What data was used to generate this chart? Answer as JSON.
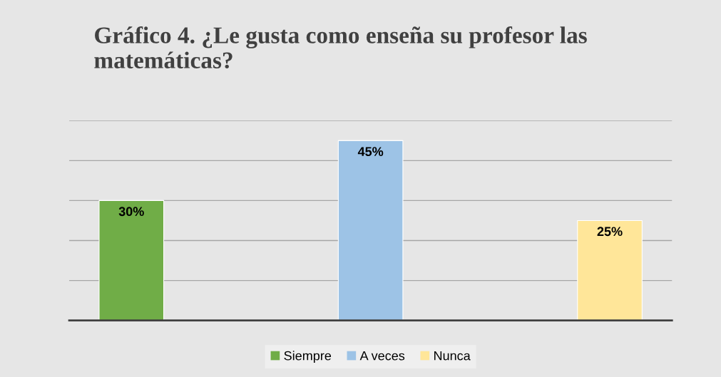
{
  "chart_data": {
    "type": "bar",
    "title": "Gráfico 4. ¿Le gusta como enseña su profesor las matemáticas?",
    "categories": [
      null,
      null,
      null
    ],
    "stacked": true,
    "series": [
      {
        "name": "Siempre",
        "color": "#70ad47",
        "values": [
          30,
          null,
          null
        ],
        "value_labels": [
          "30%",
          null,
          null
        ]
      },
      {
        "name": "A veces",
        "color": "#9dc3e6",
        "values": [
          null,
          45,
          null
        ],
        "value_labels": [
          null,
          "45%",
          null
        ]
      },
      {
        "name": "Nunca",
        "color": "#ffe699",
        "values": [
          null,
          null,
          25
        ],
        "value_labels": [
          null,
          null,
          "25%"
        ]
      }
    ],
    "ylim": [
      0,
      50
    ],
    "yticks": [
      {
        "value": 0,
        "label": null
      },
      {
        "value": 10,
        "label": null
      },
      {
        "value": 20,
        "label": null
      },
      {
        "value": 30,
        "label": null
      },
      {
        "value": 40,
        "label": null
      },
      {
        "value": 50,
        "label": null
      }
    ],
    "grid": "y",
    "legend": "bottom"
  }
}
